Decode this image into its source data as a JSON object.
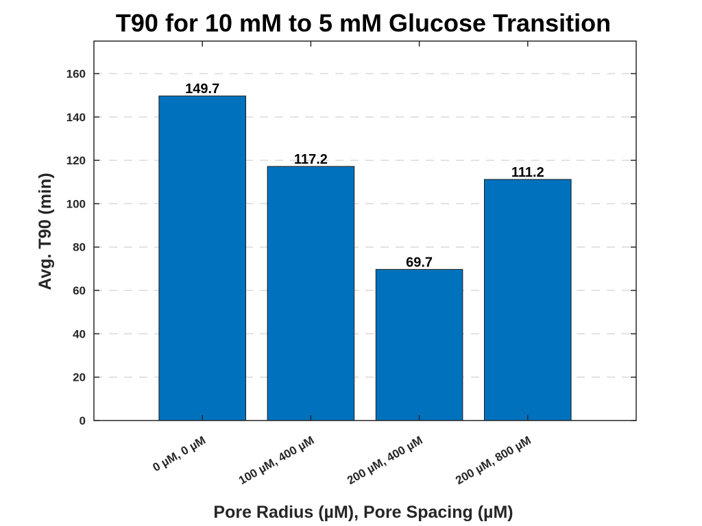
{
  "chart_data": {
    "type": "bar",
    "title": "T90 for 10 mM to 5 mM Glucose Transition",
    "xlabel": "Pore Radius (µM), Pore Spacing (µM)",
    "ylabel": "Avg. T90 (min)",
    "categories": [
      "0 µM, 0 µM",
      "100 µM, 400 µM",
      "200 µM, 400 µM",
      "200 µM, 800 µM"
    ],
    "values": [
      149.7,
      117.2,
      69.7,
      111.2
    ],
    "data_labels": [
      "149.7",
      "117.2",
      "69.7",
      "111.2"
    ],
    "ylim": [
      0,
      175
    ],
    "xlim": [
      0,
      5
    ],
    "yticks": [
      0,
      20,
      40,
      60,
      80,
      100,
      120,
      140,
      160
    ],
    "ytick_labels": [
      "0",
      "20",
      "40",
      "60",
      "80",
      "100",
      "120",
      "140",
      "160"
    ],
    "grid": "horizontal dashed",
    "bar_color": "#0072BD",
    "legend": "none"
  }
}
